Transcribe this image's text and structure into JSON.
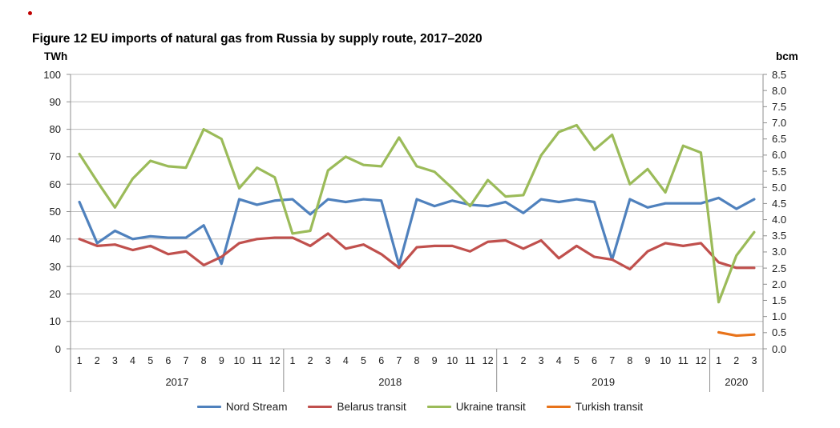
{
  "title": "Figure 12 EU imports of natural gas from Russia by supply route, 2017–2020",
  "axes": {
    "left": {
      "label": "TWh",
      "ticks": [
        100,
        90,
        80,
        70,
        60,
        50,
        40,
        30,
        20,
        10,
        0
      ]
    },
    "right": {
      "label": "bcm",
      "ticks": [
        "8.5",
        "8.0",
        "7.5",
        "7.0",
        "6.5",
        "6.0",
        "5.5",
        "5.0",
        "4.5",
        "4.0",
        "3.5",
        "3.0",
        "2.5",
        "2.0",
        "1.5",
        "1.0",
        "0.5",
        "0.0"
      ]
    }
  },
  "x_axis": {
    "years": [
      {
        "label": "2017",
        "months": [
          "1",
          "2",
          "3",
          "4",
          "5",
          "6",
          "7",
          "8",
          "9",
          "10",
          "11",
          "12"
        ]
      },
      {
        "label": "2018",
        "months": [
          "1",
          "2",
          "3",
          "4",
          "5",
          "6",
          "7",
          "8",
          "9",
          "10",
          "11",
          "12"
        ]
      },
      {
        "label": "2019",
        "months": [
          "1",
          "2",
          "3",
          "4",
          "5",
          "6",
          "7",
          "8",
          "9",
          "10",
          "11",
          "12"
        ]
      },
      {
        "label": "2020",
        "months": [
          "1",
          "2",
          "3"
        ]
      }
    ]
  },
  "chart_data": {
    "type": "line",
    "title": "Figure 12 EU imports of natural gas from Russia by supply route, 2017–2020",
    "ylabel_left": "TWh",
    "ylabel_right": "bcm",
    "ylim_left": [
      0,
      100
    ],
    "ylim_right": [
      0,
      8.5
    ],
    "grid": "horizontal",
    "legend_position": "bottom",
    "categories": [
      "2017-1",
      "2017-2",
      "2017-3",
      "2017-4",
      "2017-5",
      "2017-6",
      "2017-7",
      "2017-8",
      "2017-9",
      "2017-10",
      "2017-11",
      "2017-12",
      "2018-1",
      "2018-2",
      "2018-3",
      "2018-4",
      "2018-5",
      "2018-6",
      "2018-7",
      "2018-8",
      "2018-9",
      "2018-10",
      "2018-11",
      "2018-12",
      "2019-1",
      "2019-2",
      "2019-3",
      "2019-4",
      "2019-5",
      "2019-6",
      "2019-7",
      "2019-8",
      "2019-9",
      "2019-10",
      "2019-11",
      "2019-12",
      "2020-1",
      "2020-2",
      "2020-3"
    ],
    "series": [
      {
        "name": "Nord Stream",
        "color": "#4F81BD",
        "unit": "TWh",
        "values": [
          53.5,
          38.5,
          43,
          40,
          41,
          40.5,
          40.5,
          45,
          31,
          54.5,
          52.5,
          54,
          54.5,
          49,
          54.5,
          53.5,
          54.5,
          54,
          30.5,
          54.5,
          52,
          54,
          52.5,
          52,
          53.5,
          49.5,
          54.5,
          53.5,
          54.5,
          53.5,
          32.5,
          54.5,
          51.5,
          53,
          53,
          53,
          55,
          51,
          54.5
        ]
      },
      {
        "name": "Belarus transit",
        "color": "#C0504D",
        "unit": "TWh",
        "values": [
          40,
          37.5,
          38,
          36,
          37.5,
          34.5,
          35.5,
          30.5,
          33.5,
          38.5,
          40,
          40.5,
          40.5,
          37.5,
          42,
          36.5,
          38,
          34.5,
          29.5,
          37,
          37.5,
          37.5,
          35.5,
          39,
          39.5,
          36.5,
          39.5,
          33,
          37.5,
          33.5,
          32.5,
          29,
          35.5,
          38.5,
          37.5,
          38.5,
          31.5,
          29.5,
          29.5
        ]
      },
      {
        "name": "Ukraine transit",
        "color": "#9BBB59",
        "unit": "TWh",
        "values": [
          71,
          61,
          51.5,
          62,
          68.5,
          66.5,
          66,
          80,
          76.5,
          58.5,
          66,
          62.5,
          42,
          43,
          65,
          70,
          67,
          66.5,
          77,
          66.5,
          64.5,
          58.5,
          52,
          61.5,
          55.5,
          56,
          70.5,
          79,
          81.5,
          72.5,
          78,
          60,
          65.5,
          57,
          74,
          71.5,
          17,
          34,
          42.5
        ]
      },
      {
        "name": "Turkish transit",
        "color": "#E8731A",
        "unit": "TWh",
        "values": [
          null,
          null,
          null,
          null,
          null,
          null,
          null,
          null,
          null,
          null,
          null,
          null,
          null,
          null,
          null,
          null,
          null,
          null,
          null,
          null,
          null,
          null,
          null,
          null,
          null,
          null,
          null,
          null,
          null,
          null,
          null,
          null,
          null,
          null,
          null,
          null,
          6,
          4.8,
          5.2
        ]
      }
    ]
  }
}
